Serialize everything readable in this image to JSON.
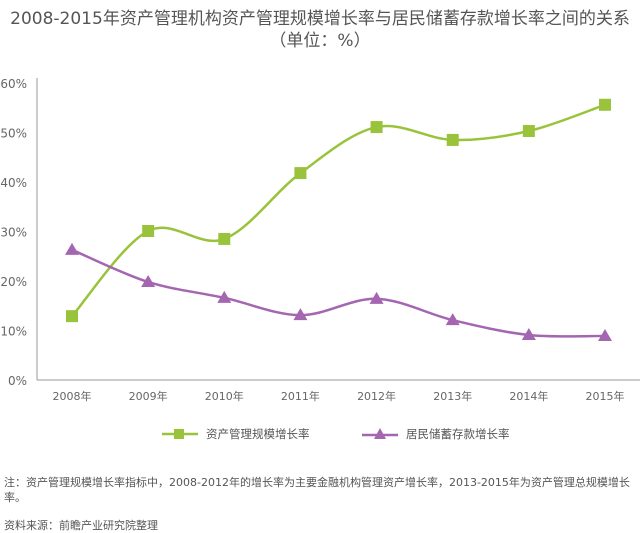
{
  "chart_data": {
    "type": "line",
    "title": "2008-2015年资产管理机构资产管理规模增长率与居民储蓄存款增长率之间的关系",
    "subtitle": "（单位：%）",
    "xlabel": "",
    "ylabel": "",
    "categories": [
      "2008年",
      "2009年",
      "2010年",
      "2011年",
      "2012年",
      "2013年",
      "2014年",
      "2015年"
    ],
    "ylim": [
      0,
      60
    ],
    "yticks": [
      "0%",
      "10%",
      "20%",
      "30%",
      "40%",
      "50%",
      "60%"
    ],
    "grid": false,
    "legend_position": "bottom",
    "series": [
      {
        "name": "资产管理规模增长率",
        "color": "#9ac33c",
        "marker": "square",
        "values": [
          12.9,
          30.1,
          28.5,
          41.8,
          51.1,
          48.5,
          50.3,
          55.6
        ]
      },
      {
        "name": "居民储蓄存款增长率",
        "color": "#a466b0",
        "marker": "triangle",
        "values": [
          26.3,
          19.8,
          16.6,
          13.1,
          16.4,
          12.1,
          9.1,
          8.9
        ]
      }
    ]
  },
  "note": "注：资产管理规模增长率指标中，2008-2012年的增长率为主要金融机构管理资产增长率，2013-2015年为资产管理总规模增长率。",
  "source": "资料来源：前瞻产业研究院整理"
}
